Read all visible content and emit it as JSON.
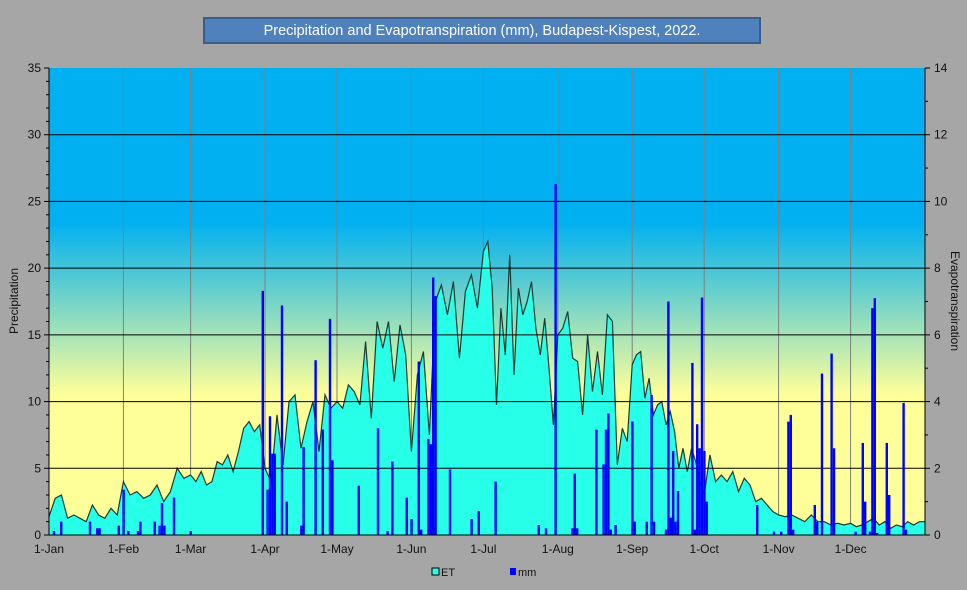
{
  "chart_data": {
    "type": "bar+area",
    "title": "Precipitation and Evapotranspiration (mm), Budapest-Kispest, 2022.",
    "xlabel": "",
    "ylabel": "Precipitation",
    "y2label": "Evapotranspiration",
    "ylim": [
      0,
      35
    ],
    "y2lim": [
      0,
      14
    ],
    "yticks": [
      "0",
      "5",
      "10",
      "15",
      "20",
      "25",
      "30",
      "35"
    ],
    "y2ticks": [
      "0",
      "2",
      "4",
      "6",
      "8",
      "10",
      "12",
      "14"
    ],
    "month_labels": [
      "1-Jan",
      "1-Feb",
      "1-Mar",
      "1-Apr",
      "1-May",
      "1-Jun",
      "1-Jul",
      "1-Aug",
      "1-Sep",
      "1-Oct",
      "1-Nov",
      "1-Dec"
    ],
    "month_start_days": [
      1,
      32,
      60,
      91,
      121,
      152,
      182,
      213,
      244,
      274,
      305,
      335
    ],
    "days_in_year": 365,
    "grid": true,
    "legend": {
      "position": "bottom",
      "entries": [
        "ET",
        "mm"
      ]
    },
    "colors": {
      "et_fill": "#28ffe8",
      "et_line": "#1c3a32",
      "mm_bar": "#0000ff",
      "sky_top": "#00b0f0",
      "sky_bottom": "#ffff99"
    },
    "series": [
      {
        "name": "ET",
        "axis": "right",
        "kind": "area",
        "values_by_month": [
          [
            0.55,
            1.1,
            1.2,
            0.5,
            0.6,
            0.5,
            0.4,
            0.9,
            0.6,
            0.5,
            0.8,
            0.6
          ],
          [
            1.6,
            1.2,
            1.3,
            1.1,
            1.2,
            1.5,
            1.0,
            1.3,
            2.0,
            1.7
          ],
          [
            1.8,
            1.6,
            1.9,
            1.5,
            1.6,
            2.2,
            2.1,
            2.4,
            1.9,
            2.5,
            3.2,
            3.4,
            3.1,
            3.3
          ],
          [
            2.0,
            1.6,
            3.6,
            2.1,
            4.0,
            4.2,
            2.6,
            3.4,
            4.0,
            2.5,
            4.2,
            3.8
          ],
          [
            4.0,
            3.8,
            4.5,
            4.3,
            3.9,
            5.8,
            3.5,
            6.4,
            5.6,
            6.4,
            4.6,
            6.3,
            5.4
          ],
          [
            2.5,
            4.8,
            5.5,
            3.0,
            7.0,
            7.5,
            6.6,
            7.6,
            5.3,
            7.3,
            7.8,
            6.8
          ],
          [
            8.5,
            8.8,
            7.4,
            3.9,
            6.8,
            5.4,
            8.4,
            4.8,
            7.4,
            6.6,
            7.0,
            7.6,
            6.2,
            5.4,
            6.5,
            5.0,
            3.3
          ],
          [
            6.0,
            6.2,
            6.7,
            5.3,
            5.2,
            3.6,
            6.0,
            4.3,
            5.5,
            4.2,
            6.6,
            6.4,
            2.1,
            3.2,
            2.8
          ],
          [
            5.1,
            5.4,
            5.5,
            4.1,
            4.7,
            3.6,
            3.9,
            4.0,
            3.3,
            3.7,
            3.1,
            2.0,
            2.6,
            1.9,
            2.6,
            2.2,
            1.6
          ],
          [
            1.2,
            2.4,
            1.6,
            1.8,
            1.6,
            1.9,
            1.3,
            1.7,
            1.5,
            1.0,
            1.1,
            0.9,
            0.7
          ],
          [
            0.6,
            0.55,
            0.6,
            0.5,
            0.4,
            0.6,
            0.4,
            0.4,
            0.3,
            0.35,
            0.3
          ],
          [
            0.35,
            0.25,
            0.3,
            0.4,
            0.5,
            0.3,
            0.4,
            0.2,
            0.3,
            0.25,
            0.4,
            0.3,
            0.4
          ]
        ]
      },
      {
        "name": "mm",
        "axis": "left",
        "kind": "bar",
        "points_day_value": [
          [
            3,
            0.3
          ],
          [
            6,
            1.0
          ],
          [
            18,
            1.0
          ],
          [
            21,
            0.5
          ],
          [
            22,
            0.5
          ],
          [
            30,
            0.7
          ],
          [
            32,
            3.4
          ],
          [
            34,
            0.3
          ],
          [
            38,
            0.3
          ],
          [
            39,
            1.0
          ],
          [
            45,
            1.0
          ],
          [
            47,
            0.7
          ],
          [
            48,
            2.4
          ],
          [
            49,
            0.7
          ],
          [
            53,
            2.8
          ],
          [
            60,
            0.3
          ],
          [
            90,
            18.3
          ],
          [
            92,
            3.4
          ],
          [
            93,
            8.9
          ],
          [
            94,
            6.1
          ],
          [
            95,
            6.1
          ],
          [
            98,
            17.2
          ],
          [
            100,
            2.5
          ],
          [
            106,
            0.7
          ],
          [
            107,
            6.6
          ],
          [
            112,
            13.1
          ],
          [
            115,
            7.9
          ],
          [
            118,
            16.2
          ],
          [
            119,
            5.6
          ],
          [
            130,
            3.7
          ],
          [
            138,
            8.0
          ],
          [
            142,
            0.3
          ],
          [
            144,
            5.5
          ],
          [
            150,
            2.8
          ],
          [
            152,
            1.2
          ],
          [
            155,
            13.0
          ],
          [
            156,
            0.4
          ],
          [
            159,
            7.2
          ],
          [
            160,
            6.8
          ],
          [
            161,
            19.3
          ],
          [
            162,
            17.9
          ],
          [
            168,
            4.9
          ],
          [
            177,
            1.2
          ],
          [
            180,
            1.8
          ],
          [
            187,
            4.0
          ],
          [
            205,
            0.75
          ],
          [
            208,
            0.5
          ],
          [
            212,
            26.3
          ],
          [
            219,
            0.5
          ],
          [
            220,
            4.6
          ],
          [
            221,
            0.5
          ],
          [
            229,
            7.9
          ],
          [
            232,
            5.3
          ],
          [
            233,
            7.9
          ],
          [
            234,
            9.1
          ],
          [
            235,
            0.4
          ],
          [
            237,
            0.75
          ],
          [
            244,
            8.5
          ],
          [
            245,
            1.0
          ],
          [
            250,
            1.0
          ],
          [
            252,
            10.5
          ],
          [
            253,
            1.0
          ],
          [
            258,
            0.4
          ],
          [
            259,
            17.5
          ],
          [
            260,
            1.3
          ],
          [
            261,
            6.3
          ],
          [
            262,
            1.0
          ],
          [
            263,
            3.3
          ],
          [
            269,
            12.9
          ],
          [
            270,
            0.4
          ],
          [
            271,
            8.3
          ],
          [
            272,
            6.5
          ],
          [
            273,
            17.8
          ],
          [
            274,
            6.3
          ],
          [
            275,
            2.5
          ],
          [
            296,
            2.25
          ],
          [
            303,
            0.25
          ],
          [
            306,
            0.25
          ],
          [
            309,
            8.5
          ],
          [
            310,
            9.0
          ],
          [
            311,
            0.4
          ],
          [
            320,
            2.25
          ],
          [
            321,
            1.0
          ],
          [
            323,
            12.1
          ],
          [
            327,
            13.6
          ],
          [
            328,
            6.5
          ],
          [
            337,
            0.25
          ],
          [
            340,
            6.9
          ],
          [
            341,
            2.5
          ],
          [
            343,
            0.25
          ],
          [
            344,
            17.0
          ],
          [
            345,
            17.75
          ],
          [
            346,
            0.15
          ],
          [
            350,
            6.9
          ],
          [
            351,
            3.0
          ],
          [
            357,
            9.9
          ],
          [
            358,
            0.4
          ]
        ]
      }
    ]
  }
}
